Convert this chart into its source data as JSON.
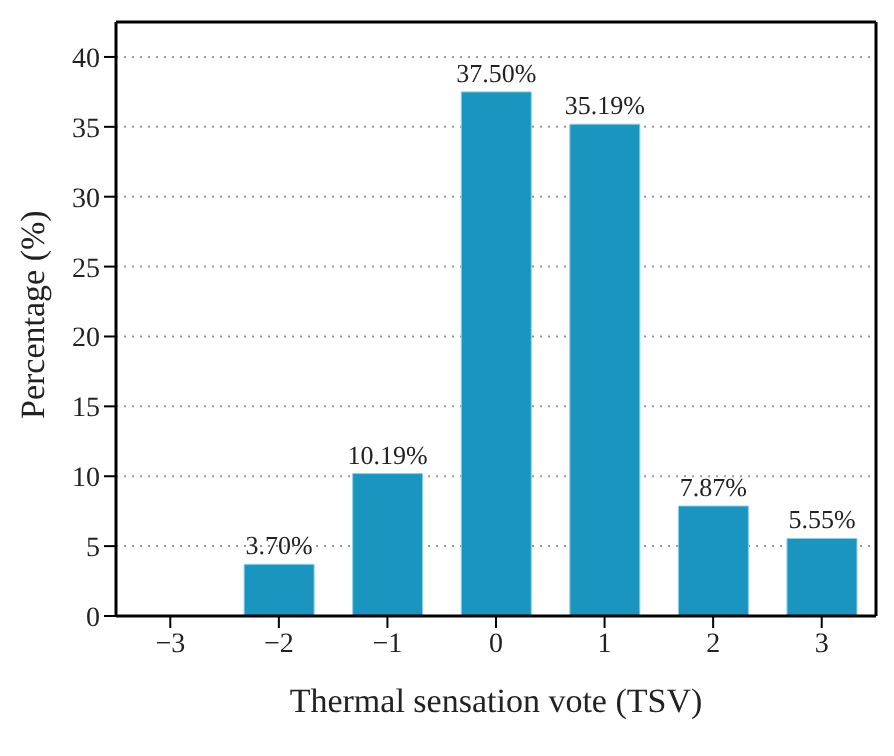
{
  "chart_data": {
    "type": "bar",
    "xlabel": "Thermal sensation vote (TSV)",
    "ylabel": "Percentage (%)",
    "categories": [
      "−3",
      "−2",
      "−1",
      "0",
      "1",
      "2",
      "3"
    ],
    "values": [
      0,
      3.7,
      10.19,
      37.5,
      35.19,
      7.87,
      5.55
    ],
    "value_labels": [
      null,
      "3.70%",
      "10.19%",
      "37.50%",
      "35.19%",
      "7.87%",
      "5.55%"
    ],
    "color": "#1a95bf",
    "ylim": [
      0,
      42.5
    ],
    "yticks": [
      0,
      5,
      10,
      15,
      20,
      25,
      30,
      35,
      40
    ],
    "grid": "y"
  }
}
